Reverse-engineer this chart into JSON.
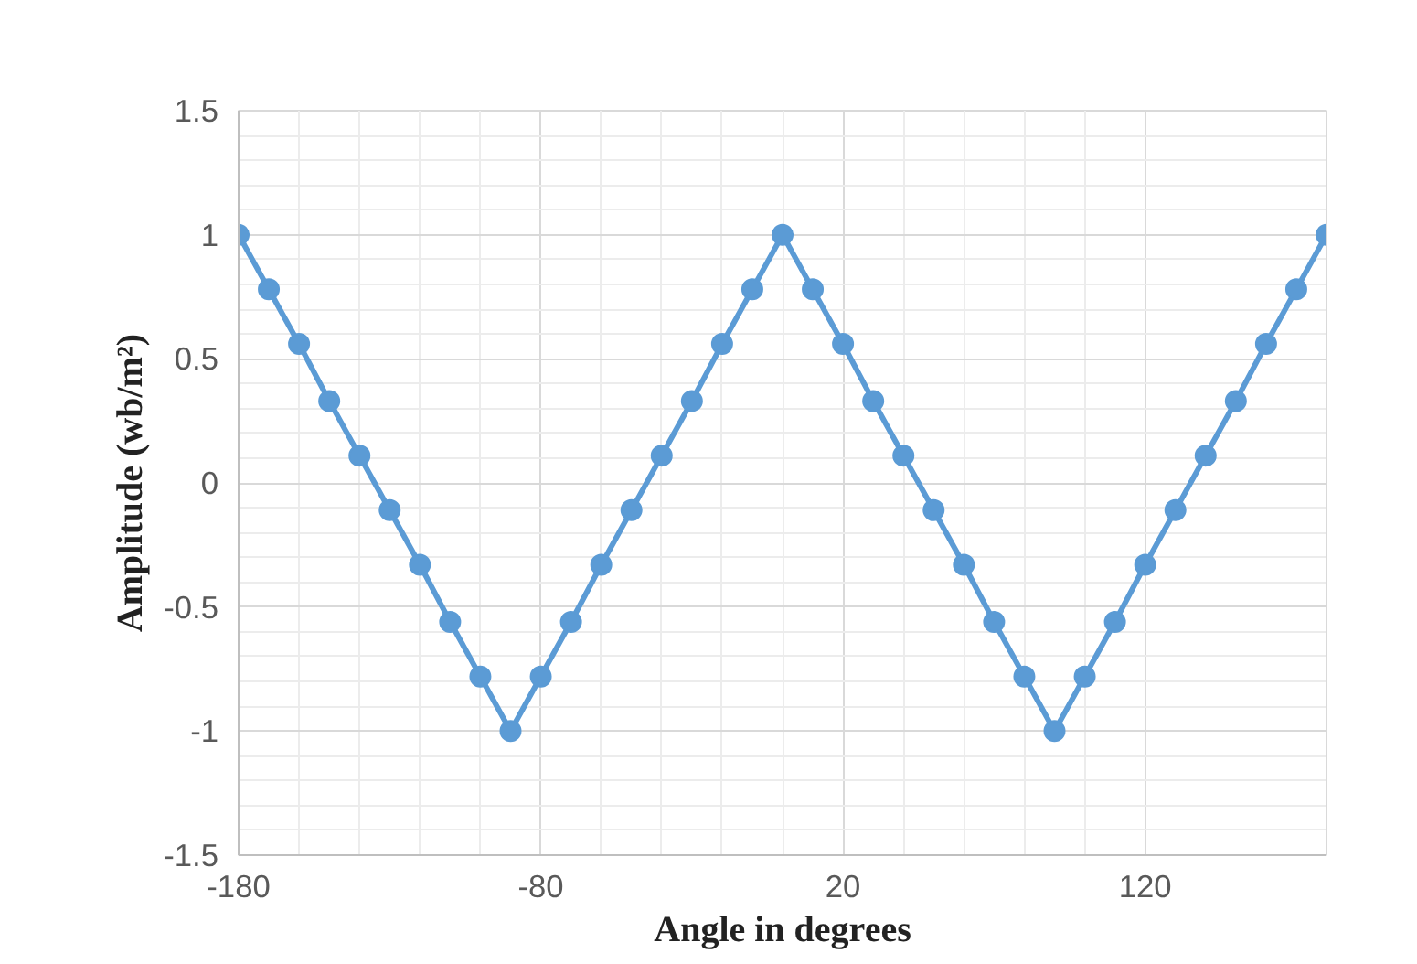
{
  "chart_data": {
    "type": "line",
    "xlabel": "Angle in degrees",
    "ylabel": "Amplitude (wb/m²)",
    "x": [
      -180,
      -170,
      -160,
      -150,
      -140,
      -130,
      -120,
      -110,
      -100,
      -90,
      -80,
      -70,
      -60,
      -50,
      -40,
      -30,
      -20,
      -10,
      0,
      10,
      20,
      30,
      40,
      50,
      60,
      70,
      80,
      90,
      100,
      110,
      120,
      130,
      140,
      150,
      160,
      170,
      180
    ],
    "series": [
      {
        "color": "#5b9bd5",
        "values": [
          1,
          0.78,
          0.56,
          0.33,
          0.11,
          -0.11,
          -0.33,
          -0.56,
          -0.78,
          -1,
          -0.78,
          -0.56,
          -0.33,
          -0.11,
          0.11,
          0.33,
          0.56,
          0.78,
          1,
          0.78,
          0.56,
          0.33,
          0.11,
          -0.11,
          -0.33,
          -0.56,
          -0.78,
          -1,
          -0.78,
          -0.56,
          -0.33,
          -0.11,
          0.11,
          0.33,
          0.56,
          0.78,
          1
        ]
      }
    ],
    "xlim": [
      -180,
      180
    ],
    "xticks": [
      -180,
      -80,
      20,
      120
    ],
    "ylim": [
      -1.5,
      1.5
    ],
    "yticks": [
      -1.5,
      -1,
      -0.5,
      0,
      0.5,
      1,
      1.5
    ],
    "grid": true,
    "marker": "circle",
    "line_style": "solid"
  }
}
